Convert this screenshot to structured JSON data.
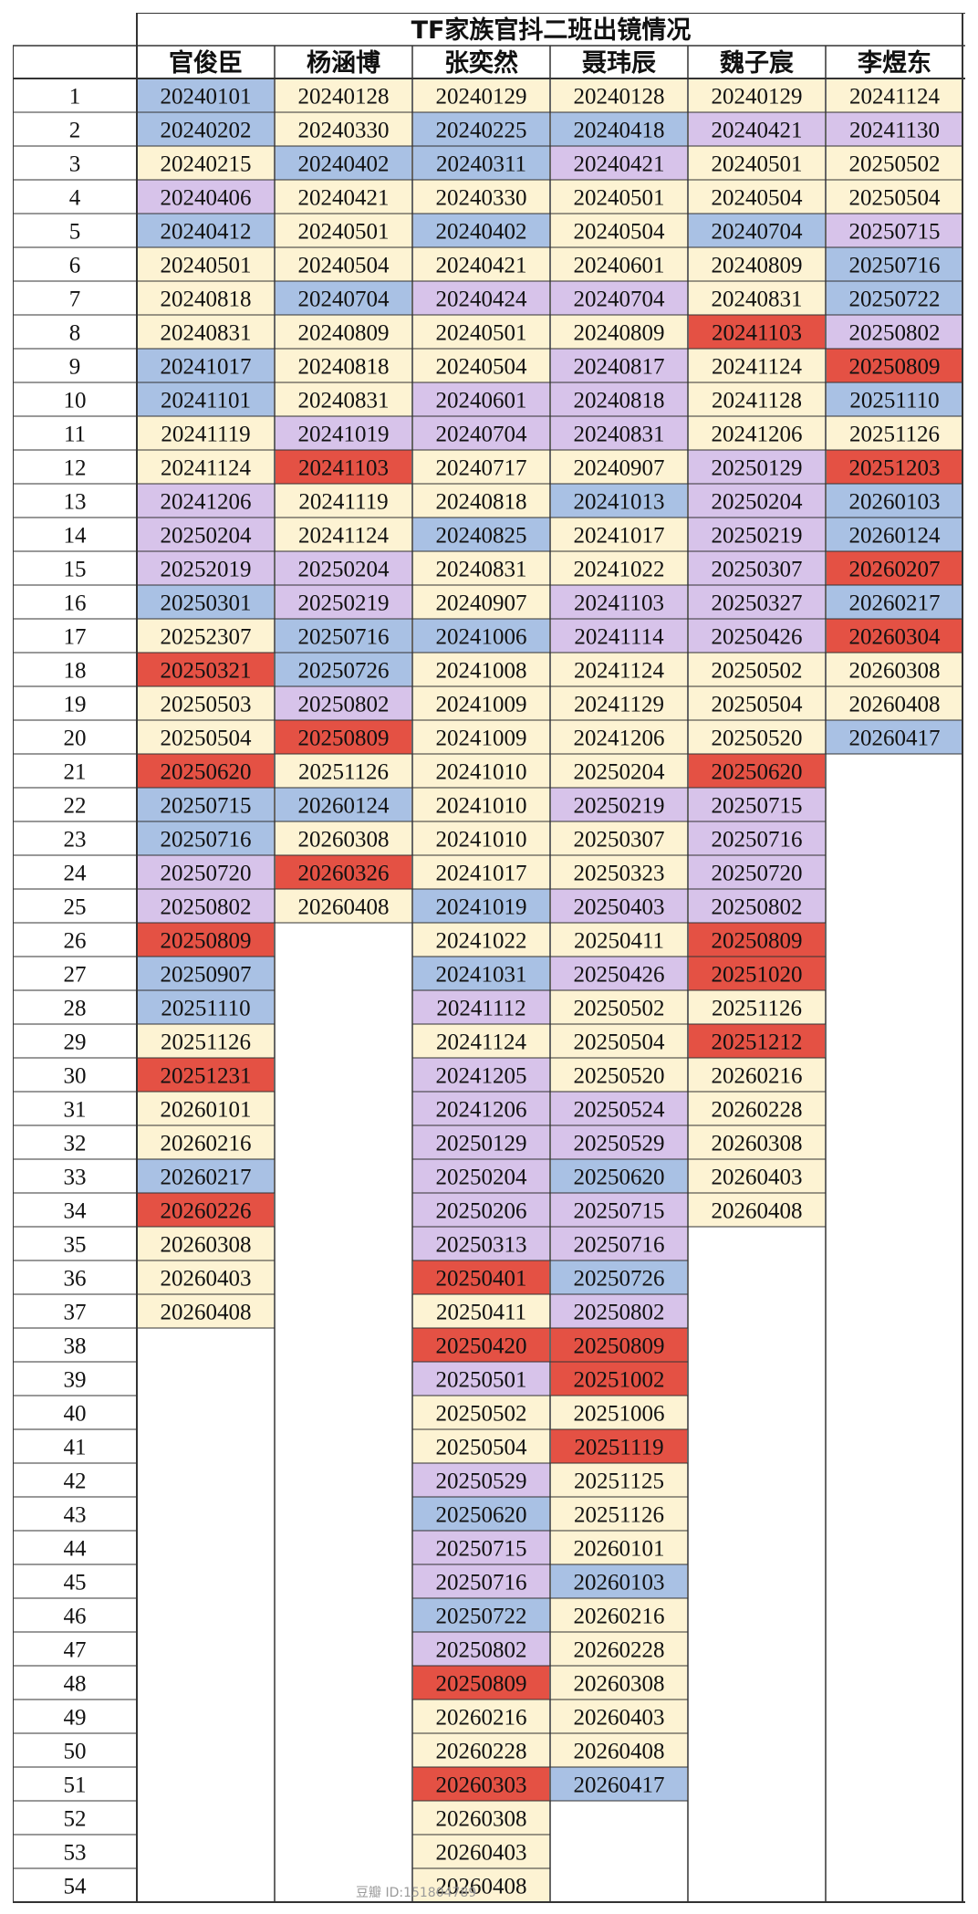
{
  "title": "TF家族官抖二班出镜情况",
  "colors": {
    "blue": "#a9c1e4",
    "cream": "#fdf3d3",
    "purple": "#d7c3ea",
    "red": "#e45144",
    "grid": "#333333"
  },
  "row_numbers": [
    "1",
    "2",
    "3",
    "4",
    "5",
    "6",
    "7",
    "8",
    "9",
    "10",
    "11",
    "12",
    "13",
    "14",
    "15",
    "16",
    "17",
    "18",
    "19",
    "20",
    "21",
    "22",
    "23",
    "24",
    "25",
    "26",
    "27",
    "28",
    "29",
    "30",
    "31",
    "32",
    "33",
    "34",
    "35",
    "36",
    "37",
    "38",
    "39",
    "40",
    "41",
    "42",
    "43",
    "44",
    "45",
    "46",
    "47",
    "48",
    "49",
    "50",
    "51",
    "52",
    "53",
    "54"
  ],
  "columns": [
    {
      "name": "官俊臣",
      "entries": [
        {
          "date": "20240101",
          "color": "blue"
        },
        {
          "date": "20240202",
          "color": "blue"
        },
        {
          "date": "20240215",
          "color": "cream"
        },
        {
          "date": "20240406",
          "color": "purple"
        },
        {
          "date": "20240412",
          "color": "blue"
        },
        {
          "date": "20240501",
          "color": "cream"
        },
        {
          "date": "20240818",
          "color": "cream"
        },
        {
          "date": "20240831",
          "color": "cream"
        },
        {
          "date": "20241017",
          "color": "blue"
        },
        {
          "date": "20241101",
          "color": "blue"
        },
        {
          "date": "20241119",
          "color": "cream"
        },
        {
          "date": "20241124",
          "color": "cream"
        },
        {
          "date": "20241206",
          "color": "purple"
        },
        {
          "date": "20250204",
          "color": "purple"
        },
        {
          "date": "20252019",
          "color": "purple"
        },
        {
          "date": "20250301",
          "color": "blue"
        },
        {
          "date": "20252307",
          "color": "cream"
        },
        {
          "date": "20250321",
          "color": "red"
        },
        {
          "date": "20250503",
          "color": "cream"
        },
        {
          "date": "20250504",
          "color": "cream"
        },
        {
          "date": "20250620",
          "color": "red"
        },
        {
          "date": "20250715",
          "color": "blue"
        },
        {
          "date": "20250716",
          "color": "blue"
        },
        {
          "date": "20250720",
          "color": "purple"
        },
        {
          "date": "20250802",
          "color": "purple"
        },
        {
          "date": "20250809",
          "color": "red"
        },
        {
          "date": "20250907",
          "color": "blue"
        },
        {
          "date": "20251110",
          "color": "blue"
        },
        {
          "date": "20251126",
          "color": "cream"
        },
        {
          "date": "20251231",
          "color": "red"
        },
        {
          "date": "20260101",
          "color": "cream"
        },
        {
          "date": "20260216",
          "color": "cream"
        },
        {
          "date": "20260217",
          "color": "blue"
        },
        {
          "date": "20260226",
          "color": "red"
        },
        {
          "date": "20260308",
          "color": "cream"
        },
        {
          "date": "20260403",
          "color": "cream"
        },
        {
          "date": "20260408",
          "color": "cream"
        }
      ]
    },
    {
      "name": "杨涵博",
      "entries": [
        {
          "date": "20240128",
          "color": "cream"
        },
        {
          "date": "20240330",
          "color": "cream"
        },
        {
          "date": "20240402",
          "color": "blue"
        },
        {
          "date": "20240421",
          "color": "cream"
        },
        {
          "date": "20240501",
          "color": "cream"
        },
        {
          "date": "20240504",
          "color": "cream"
        },
        {
          "date": "20240704",
          "color": "blue"
        },
        {
          "date": "20240809",
          "color": "cream"
        },
        {
          "date": "20240818",
          "color": "cream"
        },
        {
          "date": "20240831",
          "color": "cream"
        },
        {
          "date": "20241019",
          "color": "purple"
        },
        {
          "date": "20241103",
          "color": "red"
        },
        {
          "date": "20241119",
          "color": "cream"
        },
        {
          "date": "20241124",
          "color": "cream"
        },
        {
          "date": "20250204",
          "color": "purple"
        },
        {
          "date": "20250219",
          "color": "purple"
        },
        {
          "date": "20250716",
          "color": "blue"
        },
        {
          "date": "20250726",
          "color": "blue"
        },
        {
          "date": "20250802",
          "color": "purple"
        },
        {
          "date": "20250809",
          "color": "red"
        },
        {
          "date": "20251126",
          "color": "cream"
        },
        {
          "date": "20260124",
          "color": "blue"
        },
        {
          "date": "20260308",
          "color": "cream"
        },
        {
          "date": "20260326",
          "color": "red"
        },
        {
          "date": "20260408",
          "color": "cream"
        }
      ]
    },
    {
      "name": "张奕然",
      "entries": [
        {
          "date": "20240129",
          "color": "cream"
        },
        {
          "date": "20240225",
          "color": "blue"
        },
        {
          "date": "20240311",
          "color": "blue"
        },
        {
          "date": "20240330",
          "color": "cream"
        },
        {
          "date": "20240402",
          "color": "blue"
        },
        {
          "date": "20240421",
          "color": "cream"
        },
        {
          "date": "20240424",
          "color": "purple"
        },
        {
          "date": "20240501",
          "color": "cream"
        },
        {
          "date": "20240504",
          "color": "cream"
        },
        {
          "date": "20240601",
          "color": "purple"
        },
        {
          "date": "20240704",
          "color": "purple"
        },
        {
          "date": "20240717",
          "color": "cream"
        },
        {
          "date": "20240818",
          "color": "cream"
        },
        {
          "date": "20240825",
          "color": "blue"
        },
        {
          "date": "20240831",
          "color": "cream"
        },
        {
          "date": "20240907",
          "color": "cream"
        },
        {
          "date": "20241006",
          "color": "blue"
        },
        {
          "date": "20241008",
          "color": "cream"
        },
        {
          "date": "20241009",
          "color": "cream"
        },
        {
          "date": "20241009",
          "color": "cream"
        },
        {
          "date": "20241010",
          "color": "cream"
        },
        {
          "date": "20241010",
          "color": "cream"
        },
        {
          "date": "20241010",
          "color": "cream"
        },
        {
          "date": "20241017",
          "color": "cream"
        },
        {
          "date": "20241019",
          "color": "blue"
        },
        {
          "date": "20241022",
          "color": "cream"
        },
        {
          "date": "20241031",
          "color": "blue"
        },
        {
          "date": "20241112",
          "color": "purple"
        },
        {
          "date": "20241124",
          "color": "cream"
        },
        {
          "date": "20241205",
          "color": "purple"
        },
        {
          "date": "20241206",
          "color": "purple"
        },
        {
          "date": "20250129",
          "color": "purple"
        },
        {
          "date": "20250204",
          "color": "purple"
        },
        {
          "date": "20250206",
          "color": "purple"
        },
        {
          "date": "20250313",
          "color": "purple"
        },
        {
          "date": "20250401",
          "color": "red"
        },
        {
          "date": "20250411",
          "color": "cream"
        },
        {
          "date": "20250420",
          "color": "red"
        },
        {
          "date": "20250501",
          "color": "purple"
        },
        {
          "date": "20250502",
          "color": "cream"
        },
        {
          "date": "20250504",
          "color": "cream"
        },
        {
          "date": "20250529",
          "color": "purple"
        },
        {
          "date": "20250620",
          "color": "blue"
        },
        {
          "date": "20250715",
          "color": "purple"
        },
        {
          "date": "20250716",
          "color": "purple"
        },
        {
          "date": "20250722",
          "color": "blue"
        },
        {
          "date": "20250802",
          "color": "purple"
        },
        {
          "date": "20250809",
          "color": "red"
        },
        {
          "date": "20260216",
          "color": "cream"
        },
        {
          "date": "20260228",
          "color": "cream"
        },
        {
          "date": "20260303",
          "color": "red"
        },
        {
          "date": "20260308",
          "color": "cream"
        },
        {
          "date": "20260403",
          "color": "cream"
        },
        {
          "date": "20260408",
          "color": "cream"
        }
      ]
    },
    {
      "name": "聂玮辰",
      "entries": [
        {
          "date": "20240128",
          "color": "cream"
        },
        {
          "date": "20240418",
          "color": "blue"
        },
        {
          "date": "20240421",
          "color": "purple"
        },
        {
          "date": "20240501",
          "color": "cream"
        },
        {
          "date": "20240504",
          "color": "cream"
        },
        {
          "date": "20240601",
          "color": "cream"
        },
        {
          "date": "20240704",
          "color": "purple"
        },
        {
          "date": "20240809",
          "color": "cream"
        },
        {
          "date": "20240817",
          "color": "purple"
        },
        {
          "date": "20240818",
          "color": "purple"
        },
        {
          "date": "20240831",
          "color": "purple"
        },
        {
          "date": "20240907",
          "color": "cream"
        },
        {
          "date": "20241013",
          "color": "blue"
        },
        {
          "date": "20241017",
          "color": "cream"
        },
        {
          "date": "20241022",
          "color": "cream"
        },
        {
          "date": "20241103",
          "color": "purple"
        },
        {
          "date": "20241114",
          "color": "purple"
        },
        {
          "date": "20241124",
          "color": "cream"
        },
        {
          "date": "20241129",
          "color": "cream"
        },
        {
          "date": "20241206",
          "color": "cream"
        },
        {
          "date": "20250204",
          "color": "cream"
        },
        {
          "date": "20250219",
          "color": "purple"
        },
        {
          "date": "20250307",
          "color": "cream"
        },
        {
          "date": "20250323",
          "color": "cream"
        },
        {
          "date": "20250403",
          "color": "purple"
        },
        {
          "date": "20250411",
          "color": "cream"
        },
        {
          "date": "20250426",
          "color": "purple"
        },
        {
          "date": "20250502",
          "color": "cream"
        },
        {
          "date": "20250504",
          "color": "cream"
        },
        {
          "date": "20250520",
          "color": "cream"
        },
        {
          "date": "20250524",
          "color": "purple"
        },
        {
          "date": "20250529",
          "color": "purple"
        },
        {
          "date": "20250620",
          "color": "blue"
        },
        {
          "date": "20250715",
          "color": "purple"
        },
        {
          "date": "20250716",
          "color": "purple"
        },
        {
          "date": "20250726",
          "color": "blue"
        },
        {
          "date": "20250802",
          "color": "purple"
        },
        {
          "date": "20250809",
          "color": "red"
        },
        {
          "date": "20251002",
          "color": "red"
        },
        {
          "date": "20251006",
          "color": "cream"
        },
        {
          "date": "20251119",
          "color": "red"
        },
        {
          "date": "20251125",
          "color": "cream"
        },
        {
          "date": "20251126",
          "color": "cream"
        },
        {
          "date": "20260101",
          "color": "cream"
        },
        {
          "date": "20260103",
          "color": "blue"
        },
        {
          "date": "20260216",
          "color": "cream"
        },
        {
          "date": "20260228",
          "color": "cream"
        },
        {
          "date": "20260308",
          "color": "cream"
        },
        {
          "date": "20260403",
          "color": "cream"
        },
        {
          "date": "20260408",
          "color": "cream"
        },
        {
          "date": "20260417",
          "color": "blue"
        }
      ]
    },
    {
      "name": "魏子宸",
      "entries": [
        {
          "date": "20240129",
          "color": "cream"
        },
        {
          "date": "20240421",
          "color": "purple"
        },
        {
          "date": "20240501",
          "color": "cream"
        },
        {
          "date": "20240504",
          "color": "cream"
        },
        {
          "date": "20240704",
          "color": "blue"
        },
        {
          "date": "20240809",
          "color": "cream"
        },
        {
          "date": "20240831",
          "color": "cream"
        },
        {
          "date": "20241103",
          "color": "red"
        },
        {
          "date": "20241124",
          "color": "cream"
        },
        {
          "date": "20241128",
          "color": "cream"
        },
        {
          "date": "20241206",
          "color": "cream"
        },
        {
          "date": "20250129",
          "color": "purple"
        },
        {
          "date": "20250204",
          "color": "purple"
        },
        {
          "date": "20250219",
          "color": "purple"
        },
        {
          "date": "20250307",
          "color": "purple"
        },
        {
          "date": "20250327",
          "color": "purple"
        },
        {
          "date": "20250426",
          "color": "purple"
        },
        {
          "date": "20250502",
          "color": "cream"
        },
        {
          "date": "20250504",
          "color": "cream"
        },
        {
          "date": "20250520",
          "color": "cream"
        },
        {
          "date": "20250620",
          "color": "red"
        },
        {
          "date": "20250715",
          "color": "purple"
        },
        {
          "date": "20250716",
          "color": "purple"
        },
        {
          "date": "20250720",
          "color": "purple"
        },
        {
          "date": "20250802",
          "color": "purple"
        },
        {
          "date": "20250809",
          "color": "red"
        },
        {
          "date": "20251020",
          "color": "red"
        },
        {
          "date": "20251126",
          "color": "cream"
        },
        {
          "date": "20251212",
          "color": "red"
        },
        {
          "date": "20260216",
          "color": "cream"
        },
        {
          "date": "20260228",
          "color": "cream"
        },
        {
          "date": "20260308",
          "color": "cream"
        },
        {
          "date": "20260403",
          "color": "cream"
        },
        {
          "date": "20260408",
          "color": "cream"
        }
      ]
    },
    {
      "name": "李煜东",
      "entries": [
        {
          "date": "20241124",
          "color": "cream"
        },
        {
          "date": "20241130",
          "color": "purple"
        },
        {
          "date": "20250502",
          "color": "cream"
        },
        {
          "date": "20250504",
          "color": "cream"
        },
        {
          "date": "20250715",
          "color": "purple"
        },
        {
          "date": "20250716",
          "color": "blue"
        },
        {
          "date": "20250722",
          "color": "blue"
        },
        {
          "date": "20250802",
          "color": "purple"
        },
        {
          "date": "20250809",
          "color": "red"
        },
        {
          "date": "20251110",
          "color": "blue"
        },
        {
          "date": "20251126",
          "color": "cream"
        },
        {
          "date": "20251203",
          "color": "red"
        },
        {
          "date": "20260103",
          "color": "blue"
        },
        {
          "date": "20260124",
          "color": "blue"
        },
        {
          "date": "20260207",
          "color": "red"
        },
        {
          "date": "20260217",
          "color": "blue"
        },
        {
          "date": "20260304",
          "color": "red"
        },
        {
          "date": "20260308",
          "color": "cream"
        },
        {
          "date": "20260408",
          "color": "cream"
        },
        {
          "date": "20260417",
          "color": "blue"
        }
      ]
    }
  ],
  "watermark": "豆瓣 ID:151804789"
}
